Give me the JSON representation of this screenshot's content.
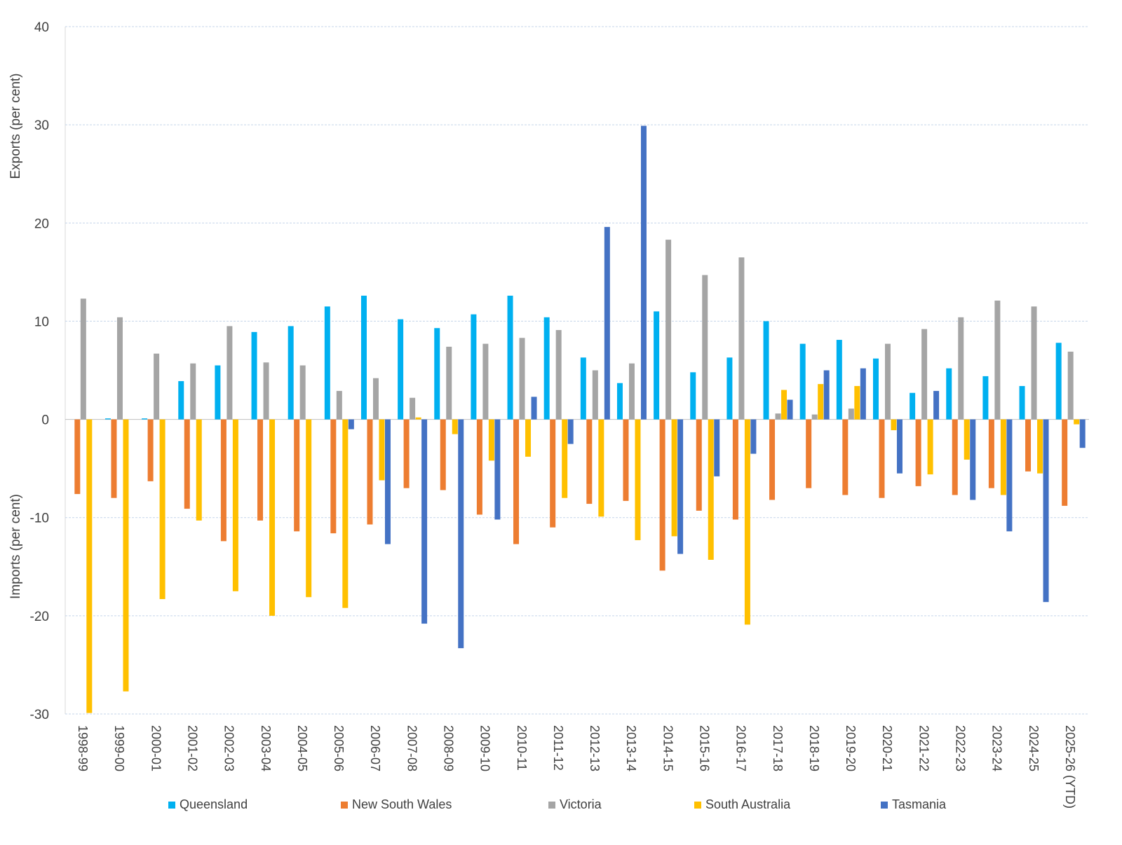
{
  "chart_data": {
    "type": "bar",
    "title": "",
    "ylabel_top": "Exports (per cent)",
    "ylabel_bottom": "Imports (per cent)",
    "ylim": [
      -30,
      40
    ],
    "yticks": [
      -30,
      -20,
      -10,
      0,
      10,
      20,
      30,
      40
    ],
    "grid": true,
    "legend_position": "bottom",
    "categories": [
      "1998-99",
      "1999-00",
      "2000-01",
      "2001-02",
      "2002-03",
      "2003-04",
      "2004-05",
      "2005-06",
      "2006-07",
      "2007-08",
      "2008-09",
      "2009-10",
      "2010-11",
      "2011-12",
      "2012-13",
      "2013-14",
      "2014-15",
      "2015-16",
      "2016-17",
      "2017-18",
      "2018-19",
      "2019-20",
      "2020-21",
      "2021-22",
      "2022-23",
      "2023-24",
      "2024-25",
      "2025-26 (YTD)"
    ],
    "series": [
      {
        "name": "Queensland",
        "color": "#00B0F0",
        "values": [
          0,
          0.1,
          0.1,
          3.9,
          5.5,
          8.9,
          9.5,
          11.5,
          12.6,
          10.2,
          9.3,
          10.7,
          12.6,
          10.4,
          6.3,
          3.7,
          11.0,
          4.8,
          6.3,
          10.0,
          7.7,
          8.1,
          6.2,
          2.7,
          5.2,
          4.4,
          3.4,
          7.8
        ]
      },
      {
        "name": "New South Wales",
        "color": "#ED7D31",
        "values": [
          -7.6,
          -8.0,
          -6.3,
          -9.1,
          -12.4,
          -10.3,
          -11.4,
          -11.6,
          -10.7,
          -7.0,
          -7.2,
          -9.7,
          -12.7,
          -11.0,
          -8.6,
          -8.3,
          -15.4,
          -9.3,
          -10.2,
          -8.2,
          -7.0,
          -7.7,
          -8.0,
          -6.8,
          -7.7,
          -7.0,
          -5.3,
          -8.8
        ]
      },
      {
        "name": "Victoria",
        "color": "#A5A5A5",
        "values": [
          12.3,
          10.4,
          6.7,
          5.7,
          9.5,
          5.8,
          5.5,
          2.9,
          4.2,
          2.2,
          7.4,
          7.7,
          8.3,
          9.1,
          5.0,
          5.7,
          18.3,
          14.7,
          16.5,
          0.6,
          0.5,
          1.1,
          7.7,
          9.2,
          10.4,
          12.1,
          11.5,
          6.9
        ]
      },
      {
        "name": "South Australia",
        "color": "#FFC000",
        "values": [
          -29.9,
          -27.7,
          -18.3,
          -10.3,
          -17.5,
          -20.0,
          -18.1,
          -19.2,
          -6.2,
          0.2,
          -1.5,
          -4.2,
          -3.8,
          -8.0,
          -9.9,
          -12.3,
          -11.9,
          -14.3,
          -20.9,
          3.0,
          3.6,
          3.4,
          -1.1,
          -5.6,
          -4.1,
          -7.7,
          -5.5,
          -0.5
        ]
      },
      {
        "name": "Tasmania",
        "color": "#4472C4",
        "values": [
          0,
          0,
          0,
          0,
          0,
          0,
          0,
          -1.0,
          -12.7,
          -20.8,
          -23.3,
          -10.2,
          2.3,
          -2.5,
          19.6,
          29.9,
          -13.7,
          -5.8,
          -3.5,
          2.0,
          5.0,
          5.2,
          -5.5,
          2.9,
          -8.2,
          -11.4,
          -18.6,
          -2.9
        ]
      }
    ]
  }
}
